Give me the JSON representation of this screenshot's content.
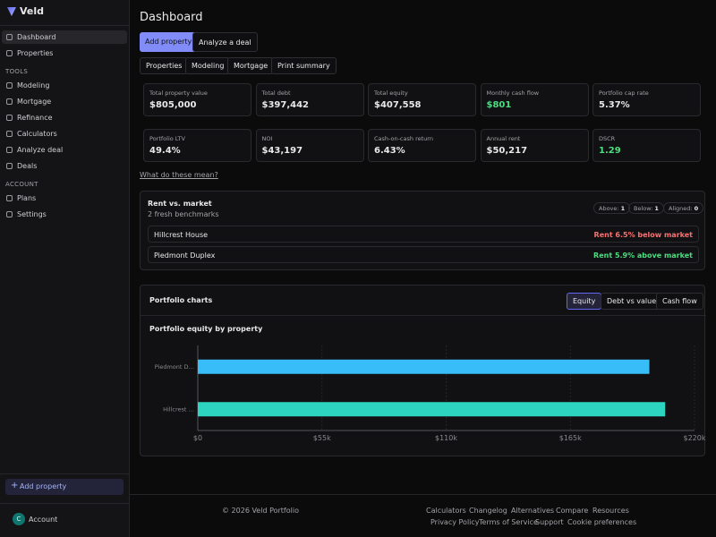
{
  "sidebar": {
    "brand": "Veld",
    "main_nav": [
      "Dashboard",
      "Properties"
    ],
    "tools_heading": "TOOLS",
    "tools_nav": [
      "Modeling",
      "Mortgage",
      "Refinance",
      "Calculators",
      "Analyze deal",
      "Deals"
    ],
    "account_heading": "ACCOUNT",
    "account_nav": [
      "Plans",
      "Settings"
    ],
    "add_property": "Add property",
    "account": {
      "avatar": "C",
      "label": "Account"
    }
  },
  "header": {
    "title": "Dashboard",
    "actions": [
      "Add property",
      "Analyze a deal"
    ],
    "tabs": [
      "Properties",
      "Modeling",
      "Mortgage",
      "Print summary"
    ]
  },
  "metrics": [
    {
      "label": "Total property value",
      "value": "$805,000"
    },
    {
      "label": "Total debt",
      "value": "$397,442"
    },
    {
      "label": "Total equity",
      "value": "$407,558"
    },
    {
      "label": "Monthly cash flow",
      "value": "$801"
    },
    {
      "label": "Portfolio cap rate",
      "value": "5.37%"
    },
    {
      "label": "Portfolio LTV",
      "value": "49.4%"
    },
    {
      "label": "NOI",
      "value": "$43,197"
    },
    {
      "label": "Cash-on-cash return",
      "value": "6.43%"
    },
    {
      "label": "Annual rent",
      "value": "$50,217"
    },
    {
      "label": "DSCR",
      "value": "1.29"
    }
  ],
  "help_link": "What do these mean?",
  "rent_vs_market": {
    "title": "Rent vs. market",
    "subtitle": "2 fresh benchmarks",
    "badges": [
      {
        "label": "Above:",
        "count": 1
      },
      {
        "label": "Below:",
        "count": 1
      },
      {
        "label": "Aligned:",
        "count": 0
      }
    ],
    "rows": [
      {
        "name": "Hillcrest House",
        "status": "Rent 6.5% below market"
      },
      {
        "name": "Piedmont Duplex",
        "status": "Rent 5.9% above market"
      }
    ]
  },
  "portfolio_charts": {
    "title": "Portfolio charts",
    "tabs": [
      "Equity",
      "Debt vs value",
      "Cash flow"
    ]
  },
  "chart_data": {
    "type": "bar",
    "orientation": "horizontal",
    "title": "Portfolio equity by property",
    "categories": [
      "Piedmont D…",
      "Hillcrest …"
    ],
    "values": [
      200000,
      207000
    ],
    "colors": [
      "#38bdf8",
      "#2dd4bf"
    ],
    "xlim": [
      0,
      220000
    ],
    "xticks": [
      {
        "value": 0,
        "label": "$0"
      },
      {
        "value": 55000,
        "label": "$55k"
      },
      {
        "value": 110000,
        "label": "$110k"
      },
      {
        "value": 165000,
        "label": "$165k"
      },
      {
        "value": 220000,
        "label": "$220k"
      }
    ],
    "grid": true
  },
  "footer": {
    "copyright": "© 2026 Veld Portfolio",
    "links_row1": [
      "Calculators",
      "Changelog",
      "Alternatives",
      "Compare",
      "Resources"
    ],
    "links_row2": [
      "Privacy Policy",
      "Terms of Service",
      "Support",
      "Cookie preferences"
    ]
  }
}
